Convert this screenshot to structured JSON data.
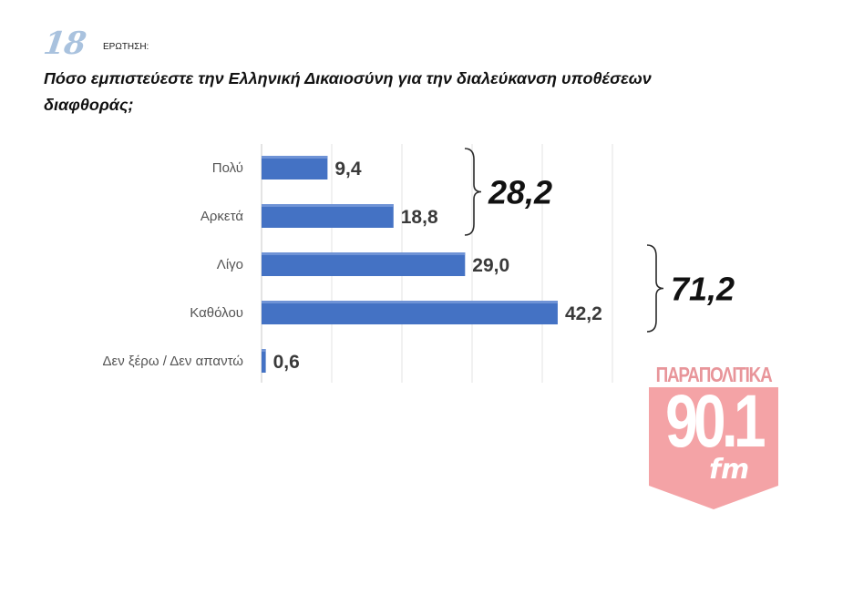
{
  "question": {
    "number": "18",
    "label": "ΕΡΩΤΗΣΗ:",
    "text": "Πόσο εμπιστεύεστε την Ελληνική Δικαιοσύνη για την διαλεύκανση υποθέσεων διαφθοράς;"
  },
  "chart_data": {
    "type": "bar",
    "orientation": "horizontal",
    "categories": [
      "Πολύ",
      "Αρκετά",
      "Λίγο",
      "Καθόλου",
      "Δεν ξέρω / Δεν απαντώ"
    ],
    "values": [
      9.4,
      18.8,
      29.0,
      42.2,
      0.6
    ],
    "value_labels": [
      "9,4",
      "18,8",
      "29,0",
      "42,2",
      "0,6"
    ],
    "xlim": [
      0,
      50
    ],
    "grid": "vertical",
    "bar_color": "#4472c4",
    "groups": [
      {
        "label": "28,2",
        "categories": [
          "Πολύ",
          "Αρκετά"
        ]
      },
      {
        "label": "71,2",
        "categories": [
          "Λίγο",
          "Καθόλου"
        ]
      }
    ]
  },
  "logo": {
    "brand": "ΠΑΡΑΠΟΛΙΤΙΚΑ",
    "frequency": "90.1",
    "band": "fm",
    "color": "#f4a3a6"
  }
}
